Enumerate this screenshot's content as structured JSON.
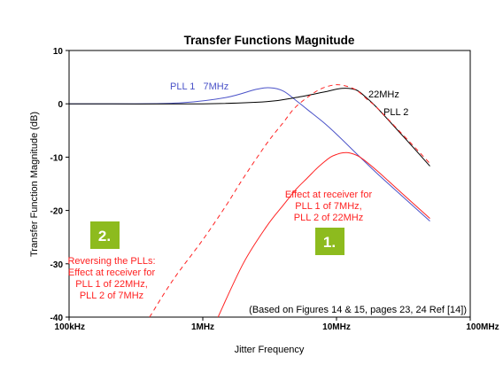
{
  "chart_data": {
    "type": "line",
    "title": "Transfer Functions Magnitude",
    "xlabel": "Jitter Frequency",
    "ylabel": "Transfer Function Magnitude (dB)",
    "xscale": "log",
    "xlim": [
      100000,
      100000000
    ],
    "ylim": [
      -40,
      10
    ],
    "x_ticks": [
      {
        "value": 100000,
        "label": "100kHz"
      },
      {
        "value": 1000000,
        "label": "1MHz"
      },
      {
        "value": 10000000,
        "label": "10MHz"
      },
      {
        "value": 100000000,
        "label": "100MHz"
      }
    ],
    "y_ticks": [
      {
        "value": 10,
        "label": "10"
      },
      {
        "value": 0,
        "label": "0"
      },
      {
        "value": -10,
        "label": "-10"
      },
      {
        "value": -20,
        "label": "-20"
      },
      {
        "value": -30,
        "label": "-30"
      },
      {
        "value": -40,
        "label": "-40"
      }
    ],
    "grid": false,
    "series": [
      {
        "name": "PLL 1  7MHz",
        "color": "#4a52c8",
        "dash": "solid",
        "x": [
          100000,
          300000,
          700000,
          1500000,
          2500000,
          3200000,
          4000000,
          5000000,
          6000000,
          8000000,
          10000000,
          15000000,
          20000000,
          30000000,
          50000000
        ],
        "y": [
          0,
          0,
          0.2,
          1.2,
          2.7,
          3.0,
          2.4,
          0.6,
          -1.0,
          -3.5,
          -5.7,
          -10,
          -13,
          -17,
          -22
        ]
      },
      {
        "name": "22MHz PLL 2",
        "color": "#000000",
        "dash": "solid",
        "x": [
          100000,
          1000000,
          3000000,
          5000000,
          8000000,
          11000000,
          14000000,
          17000000,
          20000000,
          30000000,
          50000000
        ],
        "y": [
          0,
          0,
          0.4,
          1.2,
          2.2,
          2.9,
          2.6,
          1.0,
          -0.7,
          -5.5,
          -11.7
        ]
      },
      {
        "name": "",
        "color": "#ff2222",
        "dash": "dashed",
        "x": [
          400000,
          600000,
          1000000,
          1500000,
          2000000,
          3000000,
          4000000,
          5000000,
          7000000,
          9000000,
          11000000,
          14000000,
          17000000,
          20000000,
          30000000,
          50000000
        ],
        "y": [
          -40,
          -33,
          -25.5,
          -19,
          -14,
          -7.5,
          -3.5,
          -0.5,
          2.3,
          3.4,
          3.5,
          2.6,
          0.8,
          -0.7,
          -5.3,
          -11.2
        ]
      },
      {
        "name": "",
        "color": "#ff2222",
        "dash": "solid",
        "x": [
          1300000,
          2000000,
          3000000,
          4000000,
          5000000,
          6000000,
          7000000,
          8000000,
          9000000,
          10000000,
          11000000,
          12500000,
          15000000,
          20000000,
          30000000,
          50000000
        ],
        "y": [
          -40,
          -30,
          -23,
          -19,
          -16,
          -14,
          -12.3,
          -11,
          -10,
          -9.5,
          -9.2,
          -9.2,
          -10,
          -12.5,
          -16.5,
          -21.5
        ]
      }
    ],
    "annotations": {
      "pll1_label": "PLL 1   7MHz",
      "mhz22_label": "22MHz",
      "pll2_label": "PLL 2",
      "effect_lines": [
        "Effect at receiver for",
        "PLL 1 of 7MHz,",
        "PLL 2 of 22MHz"
      ],
      "reverse_lines": [
        "Reversing the PLLs:",
        "Effect at receiver for",
        "PLL 1 of 22MHz,",
        "PLL 2 of 7MHz"
      ],
      "badge1": "1.",
      "badge2": "2.",
      "source": "(Based on Figures 14 & 15, pages 23, 24 Ref [14])"
    },
    "colors": {
      "badge_green": "#8dbb1e",
      "annotation_red": "#ff2222",
      "pll1_blue": "#4a52c8"
    }
  }
}
